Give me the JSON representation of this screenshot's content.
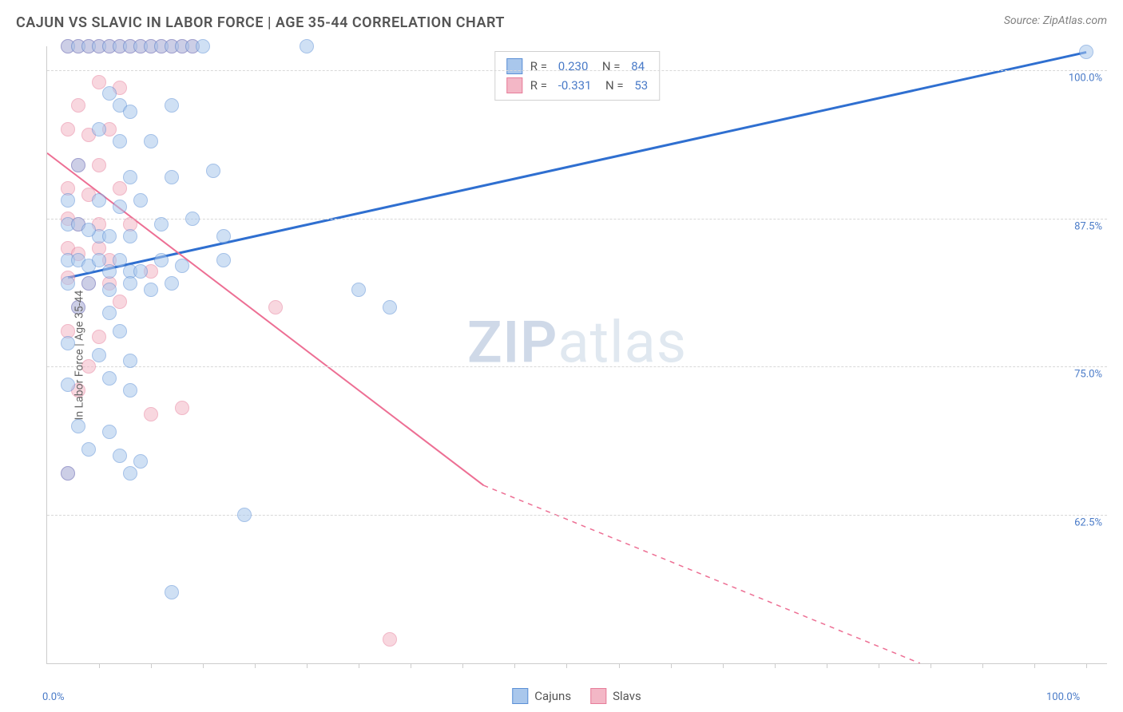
{
  "header": {
    "title": "CAJUN VS SLAVIC IN LABOR FORCE | AGE 35-44 CORRELATION CHART",
    "source": "Source: ZipAtlas.com"
  },
  "axes": {
    "ylabel": "In Labor Force | Age 35-44",
    "ylim": [
      50,
      102
    ],
    "xlim": [
      0,
      102
    ],
    "yticks": [
      {
        "v": 62.5,
        "label": "62.5%"
      },
      {
        "v": 75.0,
        "label": "75.0%"
      },
      {
        "v": 87.5,
        "label": "87.5%"
      },
      {
        "v": 100.0,
        "label": "100.0%"
      }
    ],
    "xticks_minor": [
      5,
      10,
      15,
      20,
      25,
      30,
      35,
      40,
      45,
      50,
      55,
      60,
      65,
      70,
      75,
      80,
      85,
      90,
      95,
      100
    ],
    "xlabels": [
      {
        "v": 0,
        "label": "0.0%"
      },
      {
        "v": 100,
        "label": "100.0%"
      }
    ]
  },
  "style": {
    "background_color": "#ffffff",
    "grid_color": "#d8d8d8",
    "axis_color": "#cccccc",
    "label_color": "#666666",
    "tick_label_color": "#4a7bc8",
    "marker_radius": 9,
    "marker_opacity": 0.55,
    "line_width_blue": 3,
    "line_width_pink": 2
  },
  "series": {
    "cajuns": {
      "label": "Cajuns",
      "color_fill": "#a9c7ec",
      "color_stroke": "#5b8fd6",
      "line_color": "#2f6fd0",
      "R": "0.230",
      "N": "84",
      "trend": {
        "x1": 2,
        "y1": 82.5,
        "x2": 100,
        "y2": 101.5
      },
      "points": [
        [
          2,
          102
        ],
        [
          3,
          102
        ],
        [
          4,
          102
        ],
        [
          5,
          102
        ],
        [
          6,
          102
        ],
        [
          7,
          102
        ],
        [
          8,
          102
        ],
        [
          9,
          102
        ],
        [
          10,
          102
        ],
        [
          11,
          102
        ],
        [
          12,
          102
        ],
        [
          13,
          102
        ],
        [
          14,
          102
        ],
        [
          15,
          102
        ],
        [
          25,
          102
        ],
        [
          6,
          98
        ],
        [
          7,
          97
        ],
        [
          8,
          96.5
        ],
        [
          12,
          97
        ],
        [
          5,
          95
        ],
        [
          7,
          94
        ],
        [
          10,
          94
        ],
        [
          3,
          92
        ],
        [
          8,
          91
        ],
        [
          12,
          91
        ],
        [
          16,
          91.5
        ],
        [
          2,
          89
        ],
        [
          5,
          89
        ],
        [
          7,
          88.5
        ],
        [
          9,
          89
        ],
        [
          2,
          87
        ],
        [
          3,
          87
        ],
        [
          5,
          86
        ],
        [
          4,
          86.5
        ],
        [
          6,
          86
        ],
        [
          8,
          86
        ],
        [
          11,
          87
        ],
        [
          14,
          87.5
        ],
        [
          17,
          86
        ],
        [
          2,
          84
        ],
        [
          3,
          84
        ],
        [
          4,
          83.5
        ],
        [
          5,
          84
        ],
        [
          6,
          83
        ],
        [
          7,
          84
        ],
        [
          8,
          83
        ],
        [
          9,
          83
        ],
        [
          11,
          84
        ],
        [
          13,
          83.5
        ],
        [
          17,
          84
        ],
        [
          2,
          82
        ],
        [
          4,
          82
        ],
        [
          6,
          81.5
        ],
        [
          8,
          82
        ],
        [
          12,
          82
        ],
        [
          3,
          80
        ],
        [
          6,
          79.5
        ],
        [
          10,
          81.5
        ],
        [
          30,
          81.5
        ],
        [
          33,
          80
        ],
        [
          2,
          77
        ],
        [
          7,
          78
        ],
        [
          5,
          76
        ],
        [
          8,
          75.5
        ],
        [
          2,
          73.5
        ],
        [
          6,
          74
        ],
        [
          8,
          73
        ],
        [
          3,
          70
        ],
        [
          6,
          69.5
        ],
        [
          4,
          68
        ],
        [
          7,
          67.5
        ],
        [
          2,
          66
        ],
        [
          8,
          66
        ],
        [
          9,
          67
        ],
        [
          19,
          62.5
        ],
        [
          12,
          56
        ],
        [
          100,
          101.5
        ]
      ]
    },
    "slavs": {
      "label": "Slavs",
      "color_fill": "#f3b7c6",
      "color_stroke": "#e77d9a",
      "line_color": "#ed6f94",
      "R": "-0.331",
      "N": "53",
      "trend_solid": {
        "x1": 0,
        "y1": 93,
        "x2": 42,
        "y2": 65
      },
      "trend_dash": {
        "x1": 42,
        "y1": 65,
        "x2": 84,
        "y2": 50
      },
      "points": [
        [
          2,
          102
        ],
        [
          3,
          102
        ],
        [
          4,
          102
        ],
        [
          5,
          102
        ],
        [
          6,
          102
        ],
        [
          7,
          102
        ],
        [
          8,
          102
        ],
        [
          9,
          102
        ],
        [
          10,
          102
        ],
        [
          11,
          102
        ],
        [
          12,
          102
        ],
        [
          13,
          102
        ],
        [
          14,
          102
        ],
        [
          5,
          99
        ],
        [
          7,
          98.5
        ],
        [
          3,
          97
        ],
        [
          2,
          95
        ],
        [
          4,
          94.5
        ],
        [
          6,
          95
        ],
        [
          3,
          92
        ],
        [
          5,
          92
        ],
        [
          2,
          90
        ],
        [
          4,
          89.5
        ],
        [
          7,
          90
        ],
        [
          2,
          87.5
        ],
        [
          3,
          87
        ],
        [
          5,
          87
        ],
        [
          8,
          87
        ],
        [
          2,
          85
        ],
        [
          3,
          84.5
        ],
        [
          5,
          85
        ],
        [
          6,
          84
        ],
        [
          2,
          82.5
        ],
        [
          4,
          82
        ],
        [
          6,
          82
        ],
        [
          10,
          83
        ],
        [
          3,
          80
        ],
        [
          7,
          80.5
        ],
        [
          22,
          80
        ],
        [
          2,
          78
        ],
        [
          5,
          77.5
        ],
        [
          4,
          75
        ],
        [
          3,
          73
        ],
        [
          10,
          71
        ],
        [
          13,
          71.5
        ],
        [
          2,
          66
        ],
        [
          33,
          52
        ]
      ]
    }
  },
  "legend_bottom": [
    {
      "label": "Cajuns",
      "fill": "#a9c7ec",
      "stroke": "#5b8fd6"
    },
    {
      "label": "Slavs",
      "fill": "#f3b7c6",
      "stroke": "#e77d9a"
    }
  ],
  "watermark": {
    "zip": "ZIP",
    "rest": "atlas"
  }
}
